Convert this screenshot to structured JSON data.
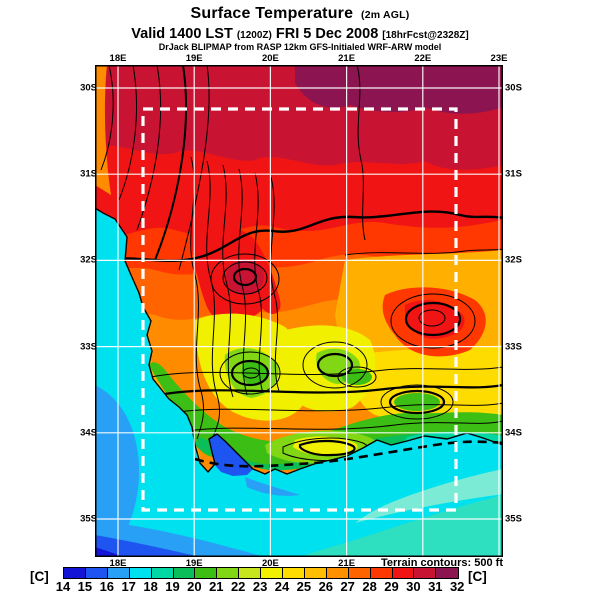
{
  "title": {
    "main": "Surface Temperature",
    "suffix": "(2m AGL)"
  },
  "subtitle": {
    "parts": [
      {
        "text": "Valid 1400 LST ",
        "size": "large"
      },
      {
        "text": "(1200Z)",
        "size": "small"
      },
      {
        "text": " FRI 5 Dec 2008 ",
        "size": "large"
      },
      {
        "text": "[18hrFcst@2328Z]",
        "size": "small"
      }
    ]
  },
  "attribution": "DrJack BLIPMAP from RASP 12km GFS-Initialed WRF-ARW model",
  "axes": {
    "lon_top": [
      "18E",
      "19E",
      "20E",
      "21E",
      "22E",
      "23E"
    ],
    "lon_bottom": [
      "18E",
      "19E",
      "20E",
      "21E"
    ],
    "lat_left": [
      "30S",
      "31S",
      "32S",
      "33S",
      "34S",
      "35S"
    ],
    "lat_right": [
      "30S",
      "31S",
      "32S",
      "33S",
      "34S",
      "35S"
    ]
  },
  "terrain_note": "Terrain contours: 500 ft",
  "colorbar": {
    "unit_left": "[C]",
    "unit_right": "[C]",
    "ticks": [
      "14",
      "15",
      "16",
      "17",
      "18",
      "19",
      "20",
      "21",
      "22",
      "23",
      "24",
      "25",
      "26",
      "27",
      "28",
      "29",
      "30",
      "31",
      "32"
    ],
    "colors": [
      "#1414D7",
      "#1E55F0",
      "#28A0F5",
      "#00E1F0",
      "#00D7A5",
      "#0ABE5A",
      "#3CBE14",
      "#82D714",
      "#C8E61E",
      "#F0F000",
      "#FFDC00",
      "#FFBE00",
      "#FF9100",
      "#FF6400",
      "#FF3700",
      "#F01414",
      "#C81432",
      "#8C1450"
    ]
  },
  "chart_data": {
    "type": "heatmap",
    "title": "Surface Temperature (2m AGL)",
    "valid_time": "1400 LST (1200Z) FRI 5 Dec 2008",
    "forecast": "18hrFcst@2328Z",
    "model": "DrJack BLIPMAP from RASP 12km GFS-Initialed WRF-ARW model",
    "units": "C",
    "colorscale": {
      "min": 14,
      "max": 32,
      "step": 1,
      "colors": [
        "#1414D7",
        "#1E55F0",
        "#28A0F5",
        "#00E1F0",
        "#00D7A5",
        "#0ABE5A",
        "#3CBE14",
        "#82D714",
        "#C8E61E",
        "#F0F000",
        "#FFDC00",
        "#FFBE00",
        "#FF9100",
        "#FF6400",
        "#FF3700",
        "#F01414",
        "#C81432",
        "#8C1450"
      ]
    },
    "x_axis": {
      "labels": [
        "18E",
        "19E",
        "20E",
        "21E",
        "22E",
        "23E"
      ]
    },
    "y_axis": {
      "labels": [
        "30S",
        "31S",
        "32S",
        "33S",
        "34S",
        "35S"
      ]
    },
    "readings": {
      "north_interior": "30-32 C (crimson/purple band along 30S)",
      "central_interior": "27-30 C (red-orange), crimson hotspot near 19.7E 32.7S",
      "eastern_valleys": "25-28 C with 29-30 C pocket near 21.5E 32.8S",
      "mountain_ridges": "20-24 C (yellow-green, dense terrain contours)",
      "south_coast_land": "19-22 C (green band)",
      "inshore_south_ocean": "17-19 C (cyan/mint)",
      "offshore_southwest_ocean": "14-17 C (blue)"
    },
    "terrain_contour_interval_ft": 500,
    "inner_domain_box": "white dashed rectangle approx 18.6E-22.4E, 30.5S-34.9S"
  }
}
